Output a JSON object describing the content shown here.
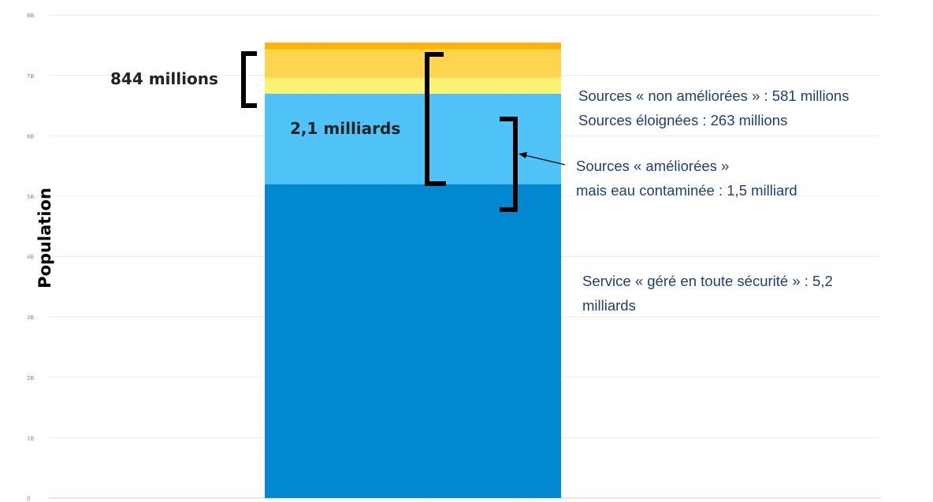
{
  "chart_data": {
    "type": "bar",
    "stacked": true,
    "ylabel": "Population",
    "ylim": [
      0,
      8
    ],
    "y_ticks": [
      "0",
      "1B",
      "2B",
      "3B",
      "4B",
      "5B",
      "6B",
      "7B",
      "8B"
    ],
    "grid": true,
    "series": [
      {
        "name": "Service « géré en toute sécurité »",
        "value": 5.2,
        "color": "#0288d1"
      },
      {
        "name": "Sources « améliorées » mais eau contaminée",
        "value": 1.5,
        "color": "#4fc3f7"
      },
      {
        "value": 0.263,
        "color": "#fff176"
      },
      {
        "value": 0.47,
        "color": "#ffd54f"
      },
      {
        "value": 0.111,
        "color": "#ffb300"
      }
    ],
    "brackets": [
      {
        "label": "844 millions"
      },
      {
        "label": "2,1 milliards"
      }
    ],
    "annotations": [
      {
        "lines": [
          "Sources « non améliorées » : 581 millions",
          "Sources éloignées : 263 millions"
        ]
      },
      {
        "lines": [
          "Sources « améliorées »",
          "mais eau contaminée : 1,5 milliard"
        ]
      },
      {
        "lines": [
          "Service « géré en toute sécurité » : 5,2",
          "milliards"
        ]
      }
    ]
  }
}
